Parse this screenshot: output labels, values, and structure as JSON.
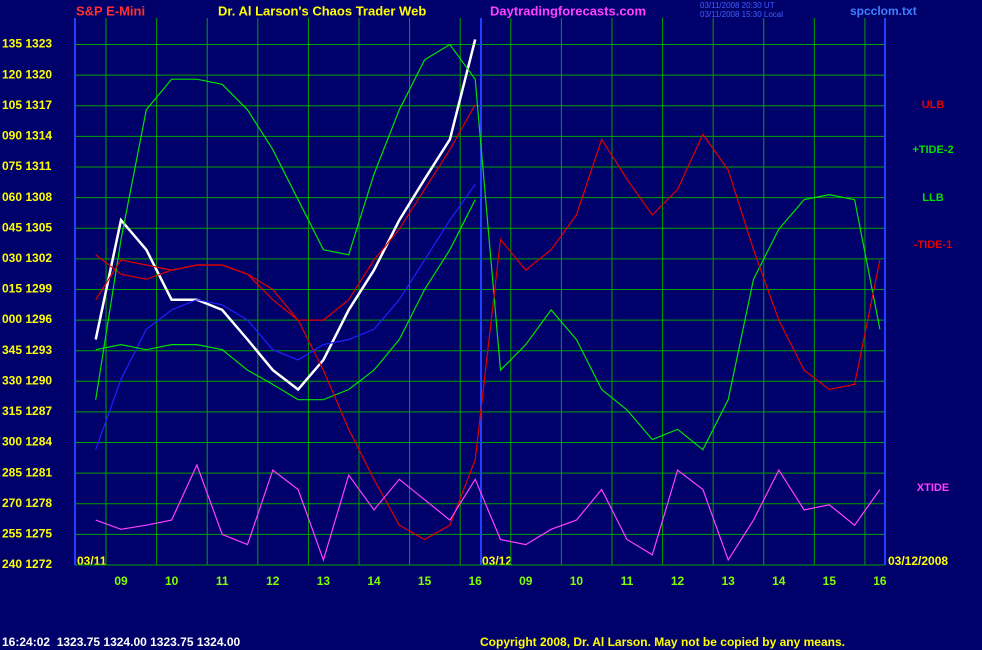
{
  "chart_data": {
    "type": "line",
    "title": "Dr. Al Larson's Chaos Trader Web",
    "symbol": "S&P E-Mini",
    "site": "Daytradingforecasts.com",
    "timestamps": [
      "03/11/2008 20:30 UT",
      "03/11/2008 15:30 Local"
    ],
    "file": "spcclom.txt",
    "dates": [
      "03/11",
      "03/12",
      "03/12/2008"
    ],
    "quote": "16:24:02  1323.75 1324.00 1323.75 1324.00",
    "copyright": "Copyright 2008, Dr. Al Larson. May not be copied by any means.",
    "grid": true,
    "xlim": [
      8.09,
      24.1
    ],
    "ylim": [
      1272,
      1325.6
    ],
    "xticks": [
      {
        "value": 9,
        "label": "09"
      },
      10,
      11,
      12,
      13,
      14,
      15,
      16,
      {
        "value": 17,
        "label": "09"
      },
      {
        "value": 18,
        "label": "10"
      },
      {
        "value": 19,
        "label": "11"
      },
      {
        "value": 20,
        "label": "12"
      },
      {
        "value": 21,
        "label": "13"
      },
      {
        "value": 22,
        "label": "14"
      },
      {
        "value": 23,
        "label": "15"
      },
      {
        "value": 24,
        "label": "16"
      }
    ],
    "yticks": [
      {
        "value": 1272,
        "label": "240 1272"
      },
      {
        "value": 1275,
        "label": "255 1275"
      },
      {
        "value": 1278,
        "label": "270 1278"
      },
      {
        "value": 1281,
        "label": "285 1281"
      },
      {
        "value": 1284,
        "label": "300 1284"
      },
      {
        "value": 1287,
        "label": "315 1287"
      },
      {
        "value": 1290,
        "label": "330 1290"
      },
      {
        "value": 1293,
        "label": "345 1293"
      },
      {
        "value": 1296,
        "label": "000 1296"
      },
      {
        "value": 1299,
        "label": "015 1299"
      },
      {
        "value": 1302,
        "label": "030 1302"
      },
      {
        "value": 1305,
        "label": "045 1305"
      },
      {
        "value": 1308,
        "label": "060 1308"
      },
      {
        "value": 1311,
        "label": "075 1311"
      },
      {
        "value": 1314,
        "label": "090 1314"
      },
      {
        "value": 1317,
        "label": "105 1317"
      },
      {
        "value": 1320,
        "label": "120 1320"
      },
      {
        "value": 1323,
        "label": "135 1323"
      }
    ],
    "x": [
      8.5,
      9,
      9.5,
      10,
      10.5,
      11,
      11.5,
      12,
      12.5,
      13,
      13.5,
      14,
      14.5,
      15,
      15.5,
      16,
      16.5,
      17,
      17.5,
      18,
      18.5,
      19,
      19.5,
      20,
      20.5,
      21,
      21.5,
      22,
      22.5,
      23,
      23.5,
      24
    ],
    "series": [
      {
        "color": "#ffffff",
        "values": [
          1294.1,
          1305.8,
          1302.9,
          1298,
          1298,
          1297,
          1294.1,
          1291.1,
          1289.2,
          1292.1,
          1297,
          1300.9,
          1305.8,
          1309.8,
          1313.7,
          1323.5,
          null,
          null,
          null,
          null,
          null,
          null,
          null,
          null,
          null,
          null,
          null,
          null,
          null,
          null,
          null,
          null
        ]
      },
      {
        "color": "#2020ff",
        "values": [
          1283.3,
          1290.2,
          1295.1,
          1297,
          1298,
          1297.5,
          1296,
          1293.1,
          1292.1,
          1293.6,
          1294.1,
          1295.1,
          1298,
          1301.9,
          1305.8,
          1309.3,
          null,
          null,
          null,
          null,
          null,
          null,
          null,
          null,
          null,
          null,
          null,
          null,
          null,
          null,
          null,
          null
        ]
      },
      {
        "name": "ULB",
        "color": "#e00000",
        "values": [
          1302.4,
          1300.5,
          1300,
          1300.9,
          1301.4,
          1301.4,
          1300.5,
          1298,
          1296,
          1296,
          1298,
          1301.9,
          1304.9,
          1308.8,
          1312.7,
          1317.1,
          null,
          null,
          null,
          null,
          null,
          null,
          null,
          null,
          null,
          null,
          null,
          null,
          null,
          null,
          null,
          null
        ]
      },
      {
        "name": "+TIDE-2",
        "color": "#00e000",
        "values": [
          1288.2,
          1303.9,
          1316.6,
          1319.6,
          1319.6,
          1319.1,
          1316.6,
          1312.7,
          1307.8,
          1302.9,
          1302.4,
          1310.3,
          1316.6,
          1321.5,
          1323,
          1319.6,
          1291.1,
          1293.6,
          1297,
          1294.1,
          1289.2,
          1287.2,
          1284.3,
          1285.3,
          1283.3,
          1288.2,
          1300,
          1304.9,
          1307.8,
          1308.3,
          1307.8,
          1295.1
        ]
      },
      {
        "name": "LLB",
        "color": "#00e000",
        "values": [
          1293.1,
          1293.6,
          1293.1,
          1293.6,
          1293.6,
          1293.1,
          1291.1,
          1289.7,
          1288.2,
          1288.2,
          1289.2,
          1291.1,
          1294.1,
          1299,
          1302.9,
          1307.8,
          null,
          null,
          null,
          null,
          null,
          null,
          null,
          null,
          null,
          null,
          null,
          null,
          null,
          null,
          null,
          null
        ]
      },
      {
        "name": "-TIDE-1",
        "color": "#e00000",
        "values": [
          1298,
          1301.9,
          1301.4,
          1300.9,
          1301.4,
          1301.4,
          1300.5,
          1299,
          1296,
          1291.1,
          1285.3,
          1280.4,
          1275.9,
          1274.5,
          1275.9,
          1282.3,
          1303.9,
          1300.9,
          1302.9,
          1306.3,
          1313.7,
          1309.8,
          1306.3,
          1308.8,
          1314.2,
          1310.7,
          1302.9,
          1296,
          1291.1,
          1289.2,
          1289.7,
          1301.9
        ]
      },
      {
        "name": "XTIDE",
        "color": "#ff40ff",
        "values": [
          1276.4,
          1275.5,
          1275.9,
          1276.4,
          1281.8,
          1275,
          1274,
          1281.3,
          1279.4,
          1272.5,
          1280.8,
          1277.4,
          1280.4,
          1278.4,
          1276.4,
          1280.4,
          1274.5,
          1274,
          1275.5,
          1276.4,
          1279.4,
          1274.5,
          1273,
          1281.3,
          1279.4,
          1272.5,
          1276.4,
          1281.3,
          1277.4,
          1277.9,
          1275.9,
          1279.4
        ]
      }
    ]
  }
}
